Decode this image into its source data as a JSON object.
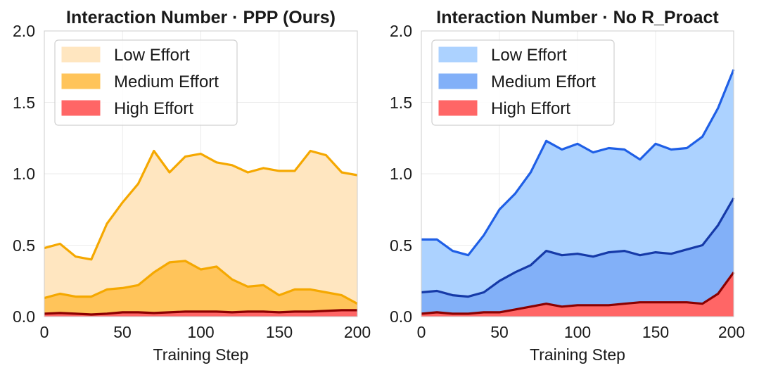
{
  "chart_data": [
    {
      "type": "area",
      "stacked": true,
      "title": "Interaction Number · PPP (Ours)",
      "xlabel": "Training Step",
      "ylabel": "",
      "xlim": [
        0,
        200
      ],
      "ylim": [
        0,
        2.0
      ],
      "xticks": [
        0,
        50,
        100,
        150,
        200
      ],
      "yticks": [
        0.0,
        0.5,
        1.0,
        1.5,
        2.0
      ],
      "xtick_labels": [
        "0",
        "50",
        "100",
        "150",
        "200"
      ],
      "ytick_labels": [
        "0.0",
        "0.5",
        "1.0",
        "1.5",
        "2.0"
      ],
      "grid": true,
      "legend_position": "top-left",
      "x": [
        0,
        10,
        20,
        30,
        40,
        50,
        60,
        70,
        80,
        90,
        100,
        110,
        120,
        130,
        140,
        150,
        160,
        170,
        180,
        190,
        200
      ],
      "series": [
        {
          "name": "Low Effort",
          "fill": "#ffe6c0",
          "line": "#f5a800",
          "cumulative": [
            0.48,
            0.51,
            0.42,
            0.4,
            0.65,
            0.8,
            0.93,
            1.16,
            1.01,
            1.12,
            1.14,
            1.08,
            1.06,
            1.01,
            1.04,
            1.02,
            1.02,
            1.16,
            1.13,
            1.01,
            0.99
          ]
        },
        {
          "name": "Medium Effort",
          "fill": "#ffc45a",
          "line": "#f5a800",
          "cumulative": [
            0.13,
            0.16,
            0.14,
            0.14,
            0.19,
            0.2,
            0.22,
            0.31,
            0.38,
            0.39,
            0.33,
            0.35,
            0.26,
            0.21,
            0.22,
            0.15,
            0.19,
            0.19,
            0.17,
            0.15,
            0.09
          ]
        },
        {
          "name": "High Effort",
          "fill": "#ff6666",
          "line": "#8b0000",
          "cumulative": [
            0.02,
            0.025,
            0.02,
            0.015,
            0.02,
            0.03,
            0.03,
            0.025,
            0.03,
            0.035,
            0.035,
            0.035,
            0.03,
            0.035,
            0.035,
            0.03,
            0.035,
            0.035,
            0.04,
            0.045,
            0.045
          ]
        }
      ]
    },
    {
      "type": "area",
      "stacked": true,
      "title": "Interaction Number · No R_Proact",
      "xlabel": "Training Step",
      "ylabel": "",
      "xlim": [
        0,
        200
      ],
      "ylim": [
        0,
        2.0
      ],
      "xticks": [
        0,
        50,
        100,
        150,
        200
      ],
      "yticks": [
        0.0,
        0.5,
        1.0,
        1.5,
        2.0
      ],
      "xtick_labels": [
        "0",
        "50",
        "100",
        "150",
        "200"
      ],
      "ytick_labels": [
        "0.0",
        "0.5",
        "1.0",
        "1.5",
        "2.0"
      ],
      "grid": true,
      "legend_position": "top-left",
      "x": [
        0,
        10,
        20,
        30,
        40,
        50,
        60,
        70,
        80,
        90,
        100,
        110,
        120,
        130,
        140,
        150,
        160,
        170,
        180,
        190,
        200
      ],
      "series": [
        {
          "name": "Low Effort",
          "fill": "#acd2ff",
          "line": "#1f5fe6",
          "cumulative": [
            0.54,
            0.54,
            0.46,
            0.43,
            0.57,
            0.75,
            0.86,
            1.01,
            1.23,
            1.17,
            1.21,
            1.15,
            1.18,
            1.17,
            1.1,
            1.21,
            1.17,
            1.18,
            1.26,
            1.46,
            1.73
          ]
        },
        {
          "name": "Medium Effort",
          "fill": "#82b0f8",
          "line": "#163aa8",
          "cumulative": [
            0.17,
            0.18,
            0.15,
            0.14,
            0.17,
            0.25,
            0.31,
            0.36,
            0.46,
            0.43,
            0.44,
            0.42,
            0.45,
            0.46,
            0.43,
            0.45,
            0.44,
            0.47,
            0.5,
            0.64,
            0.83
          ]
        },
        {
          "name": "High Effort",
          "fill": "#ff6666",
          "line": "#8b0000",
          "cumulative": [
            0.02,
            0.03,
            0.02,
            0.02,
            0.03,
            0.03,
            0.05,
            0.07,
            0.09,
            0.07,
            0.08,
            0.08,
            0.08,
            0.09,
            0.1,
            0.1,
            0.1,
            0.1,
            0.09,
            0.16,
            0.31
          ]
        }
      ]
    }
  ]
}
